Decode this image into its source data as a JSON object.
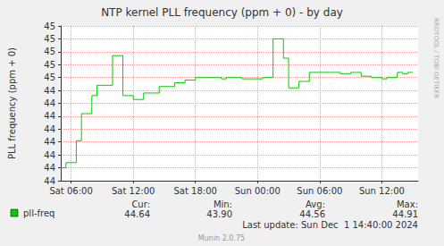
{
  "chart_data": {
    "type": "line",
    "title": "NTP kernel PLL frequency (ppm + 0) - by day",
    "y_label": "PLL frequency (ppm + 0)",
    "categories": [
      null,
      null,
      "Sat 06:00",
      null,
      null,
      null,
      null,
      null,
      null,
      null,
      null,
      null,
      null,
      null,
      "Sat 12:00",
      null,
      null,
      null,
      null,
      null,
      null,
      null,
      null,
      null,
      null,
      null,
      "Sat 18:00",
      null,
      null,
      null,
      null,
      null,
      null,
      null,
      null,
      null,
      null,
      null,
      "Sun 00:00",
      null,
      null,
      null,
      null,
      null,
      null,
      null,
      null,
      null,
      null,
      null,
      "Sun 06:00",
      null,
      null,
      null,
      null,
      null,
      null,
      null,
      null,
      null,
      null,
      null,
      "Sun 12:00",
      null,
      null,
      null,
      null,
      null,
      null,
      null
    ],
    "series": [
      {
        "name": "pll-freq",
        "color": "#00cc00",
        "values": [
          43.9,
          43.94,
          43.94,
          44.11,
          44.32,
          44.32,
          44.46,
          44.54,
          44.54,
          44.54,
          44.77,
          44.77,
          44.46,
          44.46,
          44.43,
          44.43,
          44.48,
          44.48,
          44.48,
          44.53,
          44.53,
          44.53,
          44.56,
          44.56,
          44.58,
          44.58,
          44.6,
          44.6,
          44.6,
          44.6,
          44.6,
          44.59,
          44.6,
          44.6,
          44.6,
          44.59,
          44.59,
          44.59,
          44.59,
          44.6,
          44.6,
          44.9,
          44.9,
          44.75,
          44.52,
          44.52,
          44.57,
          44.57,
          44.64,
          44.64,
          44.64,
          44.64,
          44.64,
          44.64,
          44.63,
          44.63,
          44.64,
          44.64,
          44.61,
          44.61,
          44.6,
          44.6,
          44.59,
          44.6,
          44.6,
          44.64,
          44.63,
          44.64,
          null,
          null
        ]
      }
    ],
    "ylim": [
      43.8,
      45.0
    ],
    "yticks": [
      {
        "value": 43.8,
        "label": "44"
      },
      {
        "value": 43.9,
        "label": "44"
      },
      44,
      {
        "value": 44.1,
        "label": "44"
      },
      {
        "value": 44.2,
        "label": "44"
      },
      {
        "value": 44.3,
        "label": "44"
      },
      {
        "value": 44.4,
        "label": "44"
      },
      {
        "value": 44.5,
        "label": "44"
      },
      {
        "value": 44.6,
        "label": "45"
      },
      {
        "value": 44.7,
        "label": "45"
      },
      {
        "value": 44.8,
        "label": "45"
      },
      {
        "value": 44.9,
        "label": "45"
      },
      45
    ],
    "grid": true,
    "stats": [
      {
        "name": "Cur:",
        "value": 44.64
      },
      {
        "name": "Min:",
        "value": 43.9,
        "label": "43.90"
      },
      {
        "name": "Avg:",
        "value": 44.56
      },
      {
        "name": "Max:",
        "value": 44.91
      }
    ],
    "last_update": "Last update: Sun Dec  1 14:40:00 2024",
    "version": "Munin 2.0.75",
    "watermark": "RRDTOOL / TOBI OETIKER"
  }
}
